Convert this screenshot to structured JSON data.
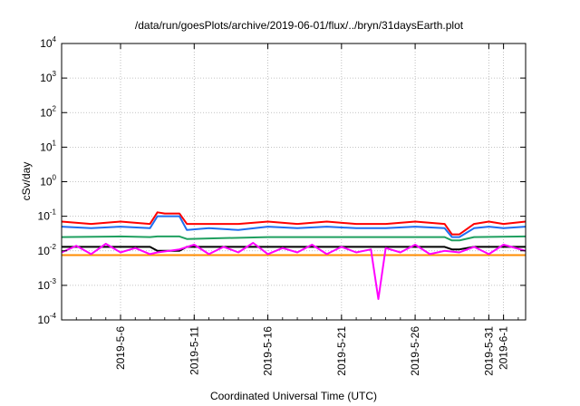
{
  "chart_data": {
    "type": "line",
    "title": "/data/run/goesPlots/archive/2019-06-01/flux/../bryn/31daysEarth.plot",
    "xlabel": "Coordinated Universal Time (UTC)",
    "ylabel": "cSv/day",
    "yscale": "log",
    "ylim": [
      0.0001,
      10000
    ],
    "y_ticks": [
      {
        "value": 0.0001,
        "base": "10",
        "exp": "-4"
      },
      {
        "value": 0.001,
        "base": "10",
        "exp": "-3"
      },
      {
        "value": 0.01,
        "base": "10",
        "exp": "-2"
      },
      {
        "value": 0.1,
        "base": "10",
        "exp": "-1"
      },
      {
        "value": 1,
        "base": "10",
        "exp": "0"
      },
      {
        "value": 10,
        "base": "10",
        "exp": "1"
      },
      {
        "value": 100,
        "base": "10",
        "exp": "2"
      },
      {
        "value": 1000,
        "base": "10",
        "exp": "3"
      },
      {
        "value": 10000,
        "base": "10",
        "exp": "4"
      }
    ],
    "xlim": [
      "2019-05-02 00:00",
      "2019-06-02 12:00"
    ],
    "x_ticks": [
      "2019-5-6",
      "2019-5-11",
      "2019-5-16",
      "2019-5-21",
      "2019-5-26",
      "2019-5-31",
      "2019-6-1"
    ],
    "grid": true,
    "series": [
      {
        "color": "#ff0000",
        "x": [
          "2019-05-02",
          "2019-05-04",
          "2019-05-06",
          "2019-05-08",
          "2019-05-08 12:00",
          "2019-05-09",
          "2019-05-10",
          "2019-05-10 12:00",
          "2019-05-12",
          "2019-05-14",
          "2019-05-16",
          "2019-05-18",
          "2019-05-20",
          "2019-05-22",
          "2019-05-24",
          "2019-05-26",
          "2019-05-28",
          "2019-05-28 12:00",
          "2019-05-29",
          "2019-05-30",
          "2019-05-31",
          "2019-06-01",
          "2019-06-02 12:00"
        ],
        "y": [
          0.07,
          0.06,
          0.07,
          0.06,
          0.13,
          0.12,
          0.12,
          0.06,
          0.06,
          0.06,
          0.07,
          0.06,
          0.07,
          0.06,
          0.06,
          0.07,
          0.06,
          0.03,
          0.03,
          0.06,
          0.07,
          0.06,
          0.07
        ]
      },
      {
        "color": "#1e6ef0",
        "x": [
          "2019-05-02",
          "2019-05-04",
          "2019-05-06",
          "2019-05-08",
          "2019-05-08 12:00",
          "2019-05-09",
          "2019-05-10",
          "2019-05-10 12:00",
          "2019-05-12",
          "2019-05-14",
          "2019-05-16",
          "2019-05-18",
          "2019-05-20",
          "2019-05-22",
          "2019-05-24",
          "2019-05-26",
          "2019-05-28",
          "2019-05-28 12:00",
          "2019-05-29",
          "2019-05-30",
          "2019-05-31",
          "2019-06-01",
          "2019-06-02 12:00"
        ],
        "y": [
          0.05,
          0.045,
          0.05,
          0.045,
          0.1,
          0.1,
          0.1,
          0.04,
          0.045,
          0.04,
          0.05,
          0.045,
          0.05,
          0.045,
          0.045,
          0.05,
          0.045,
          0.025,
          0.025,
          0.045,
          0.05,
          0.045,
          0.05
        ]
      },
      {
        "color": "#20a060",
        "x": [
          "2019-05-02",
          "2019-05-06",
          "2019-05-08",
          "2019-05-08 12:00",
          "2019-05-10",
          "2019-05-10 12:00",
          "2019-05-16",
          "2019-05-22",
          "2019-05-28",
          "2019-05-28 12:00",
          "2019-05-29",
          "2019-05-30",
          "2019-06-02 12:00"
        ],
        "y": [
          0.025,
          0.026,
          0.025,
          0.026,
          0.026,
          0.022,
          0.025,
          0.025,
          0.025,
          0.02,
          0.02,
          0.025,
          0.026
        ]
      },
      {
        "color": "#000000",
        "x": [
          "2019-05-02",
          "2019-05-06",
          "2019-05-08",
          "2019-05-08 12:00",
          "2019-05-10",
          "2019-05-10 12:00",
          "2019-05-16",
          "2019-05-22",
          "2019-05-28",
          "2019-05-28 12:00",
          "2019-05-29",
          "2019-05-30",
          "2019-06-02 12:00"
        ],
        "y": [
          0.013,
          0.013,
          0.013,
          0.01,
          0.01,
          0.013,
          0.013,
          0.013,
          0.013,
          0.011,
          0.011,
          0.013,
          0.013
        ]
      },
      {
        "color": "#ff8c00",
        "x": [
          "2019-05-02",
          "2019-05-08",
          "2019-05-10",
          "2019-05-16",
          "2019-05-22",
          "2019-05-28",
          "2019-05-30",
          "2019-06-02 12:00"
        ],
        "y": [
          0.0075,
          0.0075,
          0.0075,
          0.0075,
          0.0075,
          0.0075,
          0.0075,
          0.0075
        ]
      },
      {
        "color": "#ff00ff",
        "x": [
          "2019-05-02",
          "2019-05-03",
          "2019-05-04",
          "2019-05-05",
          "2019-05-06",
          "2019-05-07",
          "2019-05-08",
          "2019-05-08 12:00",
          "2019-05-10",
          "2019-05-11",
          "2019-05-12",
          "2019-05-13",
          "2019-05-14",
          "2019-05-15",
          "2019-05-16",
          "2019-05-17",
          "2019-05-18",
          "2019-05-19",
          "2019-05-20",
          "2019-05-21",
          "2019-05-22",
          "2019-05-23",
          "2019-05-23 12:00",
          "2019-05-24",
          "2019-05-25",
          "2019-05-26",
          "2019-05-27",
          "2019-05-28",
          "2019-05-29",
          "2019-05-30",
          "2019-05-31",
          "2019-06-01",
          "2019-06-02 12:00"
        ],
        "y": [
          0.009,
          0.014,
          0.008,
          0.016,
          0.009,
          0.012,
          0.008,
          0.009,
          0.011,
          0.015,
          0.008,
          0.013,
          0.009,
          0.017,
          0.008,
          0.012,
          0.009,
          0.015,
          0.008,
          0.013,
          0.009,
          0.011,
          0.0004,
          0.012,
          0.009,
          0.015,
          0.008,
          0.01,
          0.009,
          0.013,
          0.008,
          0.015,
          0.01
        ]
      }
    ]
  }
}
